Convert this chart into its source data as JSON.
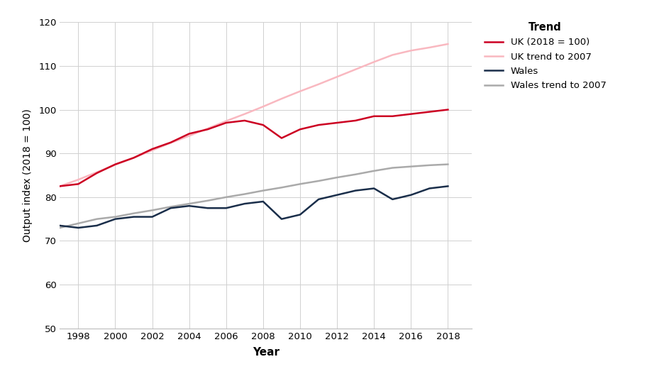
{
  "years": [
    1997,
    1998,
    1999,
    2000,
    2001,
    2002,
    2003,
    2004,
    2005,
    2006,
    2007,
    2008,
    2009,
    2010,
    2011,
    2012,
    2013,
    2014,
    2015,
    2016,
    2017,
    2018,
    2019
  ],
  "uk": [
    82.5,
    83.0,
    85.5,
    87.5,
    89.0,
    91.0,
    92.5,
    94.5,
    95.5,
    97.0,
    97.5,
    96.5,
    93.5,
    95.5,
    96.5,
    97.0,
    97.5,
    98.5,
    98.5,
    99.0,
    99.5,
    100.0,
    null
  ],
  "uk_trend": [
    82.5,
    84.0,
    85.7,
    87.4,
    89.0,
    90.7,
    92.4,
    94.0,
    95.7,
    97.4,
    99.0,
    100.7,
    102.5,
    104.2,
    105.8,
    107.5,
    109.2,
    110.9,
    112.5,
    113.5,
    114.2,
    115.0,
    null
  ],
  "wales": [
    73.5,
    73.0,
    73.5,
    75.0,
    75.5,
    75.5,
    77.5,
    78.0,
    77.5,
    77.5,
    78.5,
    79.0,
    75.0,
    76.0,
    79.5,
    80.5,
    81.5,
    82.0,
    79.5,
    80.5,
    82.0,
    82.5,
    null
  ],
  "wales_trend": [
    73.0,
    74.0,
    75.0,
    75.5,
    76.3,
    77.0,
    77.8,
    78.5,
    79.2,
    80.0,
    80.7,
    81.5,
    82.2,
    83.0,
    83.7,
    84.5,
    85.2,
    86.0,
    86.7,
    87.0,
    87.3,
    87.5,
    null
  ],
  "uk_color": "#cc0022",
  "uk_trend_color": "#f9b8c0",
  "wales_color": "#1a2e4a",
  "wales_trend_color": "#aaaaaa",
  "ylabel": "Output index (2018 = 100)",
  "xlabel": "Year",
  "legend_title": "Trend",
  "legend_labels": [
    "UK (2018 = 100)",
    "UK trend to 2007",
    "Wales",
    "Wales trend to 2007"
  ],
  "ylim": [
    50,
    120
  ],
  "yticks": [
    50,
    60,
    70,
    80,
    90,
    100,
    110,
    120
  ],
  "xticks": [
    1998,
    2000,
    2002,
    2004,
    2006,
    2008,
    2010,
    2012,
    2014,
    2016,
    2018
  ],
  "background_color": "#ffffff",
  "grid_color": "#d0d0d0"
}
